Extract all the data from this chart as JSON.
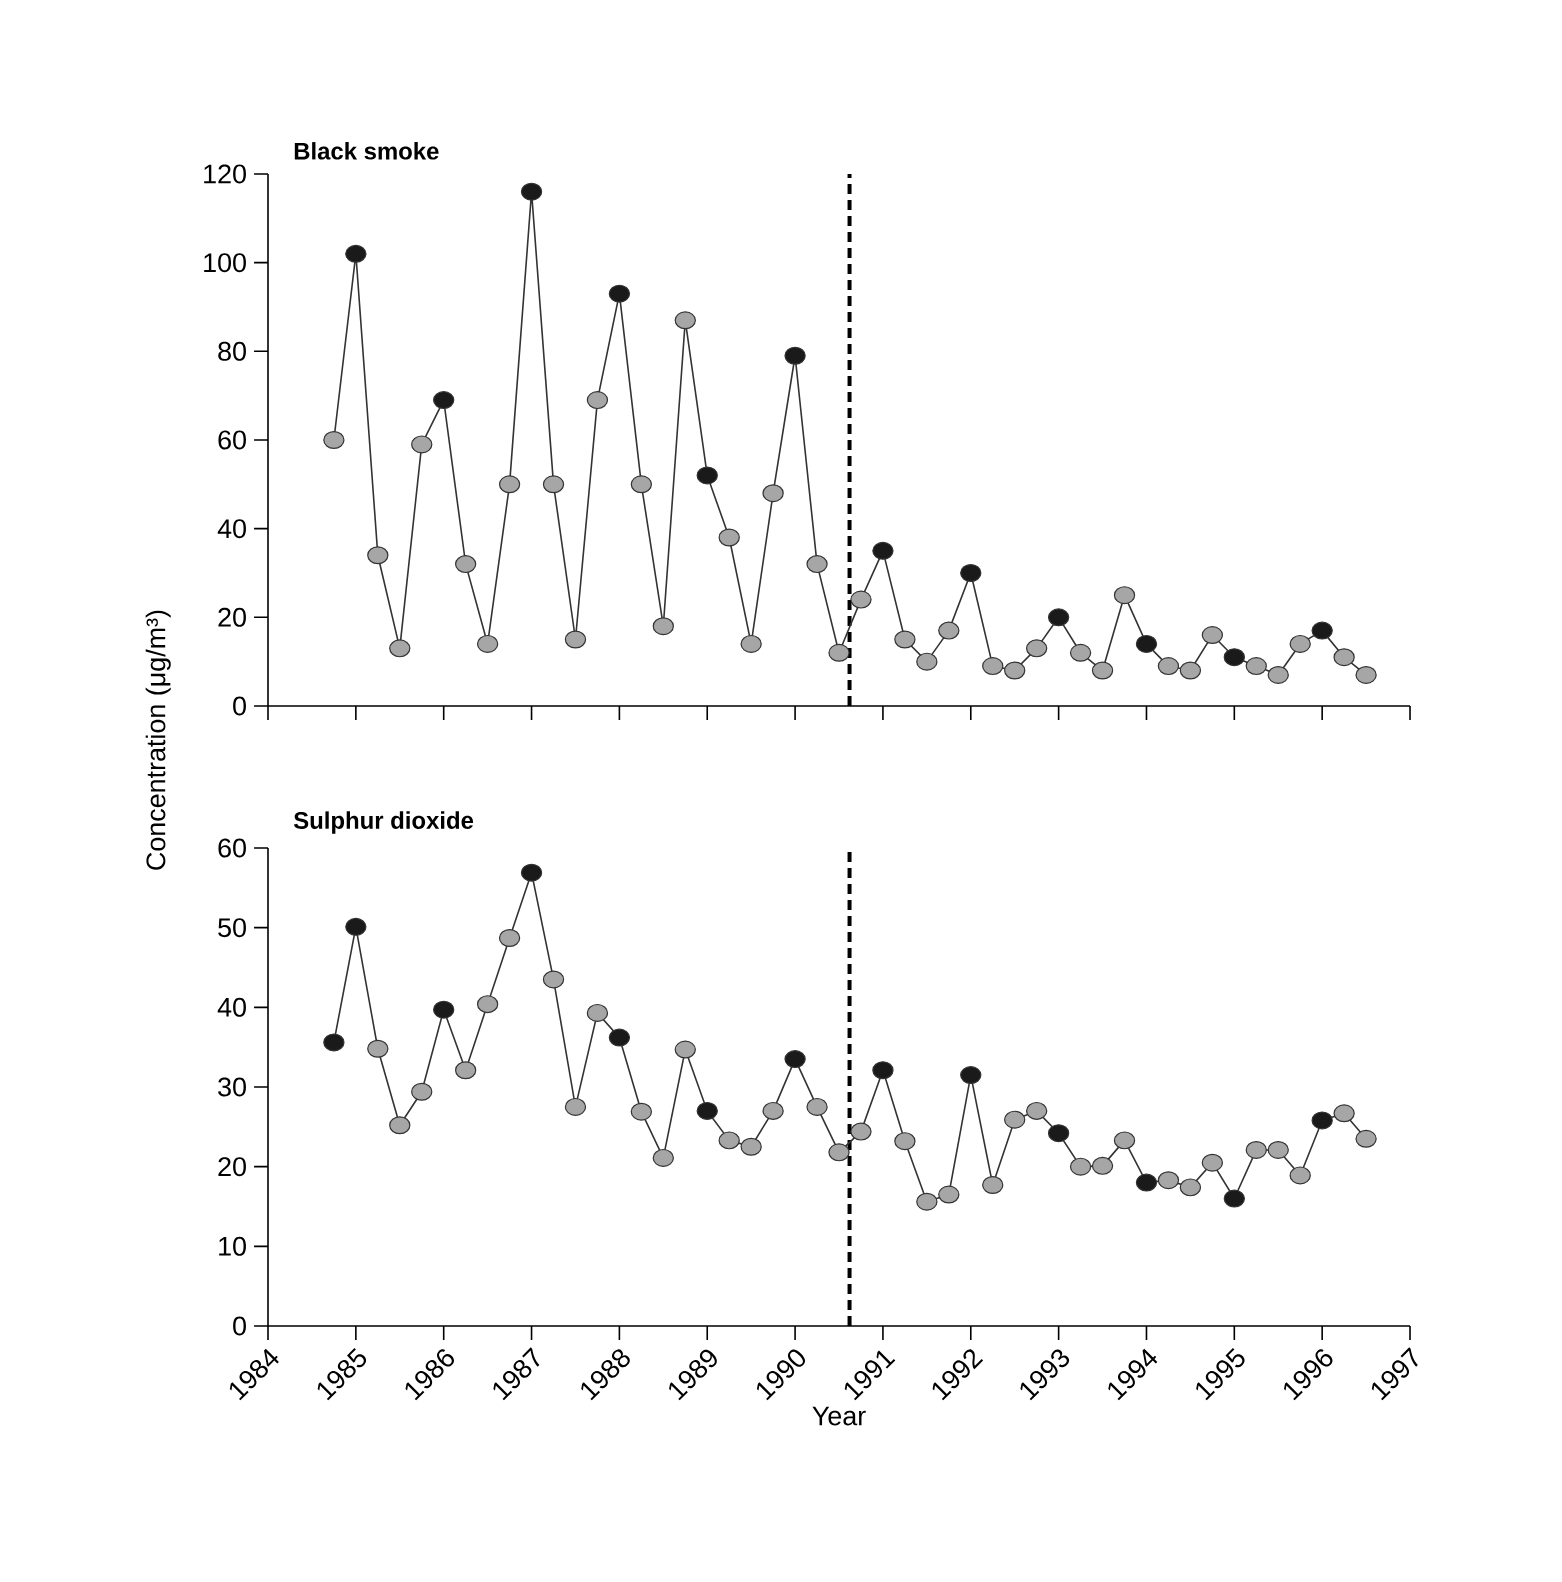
{
  "chart_data": [
    {
      "type": "line",
      "title": "Black smoke",
      "ylabel": "Concentration (μg/m³)",
      "marker": "circle",
      "line_style": "solid",
      "tick_labels": "y",
      "x": [
        1984.75,
        1985,
        1985.25,
        1985.5,
        1985.75,
        1986,
        1986.25,
        1986.5,
        1986.75,
        1987,
        1987.25,
        1987.5,
        1987.75,
        1988,
        1988.25,
        1988.5,
        1988.75,
        1989,
        1989.25,
        1989.5,
        1989.75,
        1990,
        1990.25,
        1990.5,
        1990.75,
        1991,
        1991.25,
        1991.5,
        1991.75,
        1992,
        1992.25,
        1992.5,
        1992.75,
        1993,
        1993.25,
        1993.5,
        1993.75,
        1994,
        1994.25,
        1994.5,
        1994.75,
        1995,
        1995.25,
        1995.5,
        1995.75,
        1996,
        1996.25,
        1996.5
      ],
      "xlim": [
        1984,
        1997
      ],
      "xticks": [
        1984,
        1985,
        1986,
        1987,
        1988,
        1989,
        1990,
        1991,
        1992,
        1993,
        1994,
        1995,
        1996,
        1997
      ],
      "ylim": [
        0,
        120
      ],
      "yticks": [
        0,
        20,
        40,
        60,
        80,
        100,
        120
      ],
      "ref_lines": [
        {
          "axis": "x",
          "value": 1990.62,
          "color": "#000000",
          "line_style": "dashed"
        }
      ],
      "series": [
        {
          "color": "#333333",
          "colors": [
            "#a6a6a6",
            "#1a1a1a",
            "#a6a6a6",
            "#a6a6a6",
            "#a6a6a6",
            "#1a1a1a",
            "#a6a6a6",
            "#a6a6a6",
            "#a6a6a6",
            "#1a1a1a",
            "#a6a6a6",
            "#a6a6a6",
            "#a6a6a6",
            "#1a1a1a",
            "#a6a6a6",
            "#a6a6a6",
            "#a6a6a6",
            "#1a1a1a",
            "#a6a6a6",
            "#a6a6a6",
            "#a6a6a6",
            "#1a1a1a",
            "#a6a6a6",
            "#a6a6a6",
            "#a6a6a6",
            "#1a1a1a",
            "#a6a6a6",
            "#a6a6a6",
            "#a6a6a6",
            "#1a1a1a",
            "#a6a6a6",
            "#a6a6a6",
            "#a6a6a6",
            "#1a1a1a",
            "#a6a6a6",
            "#a6a6a6",
            "#a6a6a6",
            "#1a1a1a",
            "#a6a6a6",
            "#a6a6a6",
            "#a6a6a6",
            "#1a1a1a",
            "#a6a6a6",
            "#a6a6a6",
            "#a6a6a6",
            "#1a1a1a",
            "#a6a6a6",
            "#a6a6a6"
          ],
          "values": [
            60,
            102,
            34,
            13,
            59,
            69,
            32,
            14,
            50,
            116,
            50,
            15,
            69,
            93,
            50,
            18,
            87,
            52,
            38,
            14,
            48,
            79,
            32,
            12,
            24,
            35,
            15,
            10,
            17,
            30,
            9,
            8,
            13,
            20,
            12,
            8,
            25,
            14,
            9,
            8,
            16,
            11,
            9,
            7,
            14,
            17,
            11,
            7
          ]
        }
      ]
    },
    {
      "type": "line",
      "title": "Sulphur dioxide",
      "xlabel": "Year",
      "marker": "circle",
      "line_style": "solid",
      "x": [
        1984.75,
        1985,
        1985.25,
        1985.5,
        1985.75,
        1986,
        1986.25,
        1986.5,
        1986.75,
        1987,
        1987.25,
        1987.5,
        1987.75,
        1988,
        1988.25,
        1988.5,
        1988.75,
        1989,
        1989.25,
        1989.5,
        1989.75,
        1990,
        1990.25,
        1990.5,
        1990.75,
        1991,
        1991.25,
        1991.5,
        1991.75,
        1992,
        1992.25,
        1992.5,
        1992.75,
        1993,
        1993.25,
        1993.5,
        1993.75,
        1994,
        1994.25,
        1994.5,
        1994.75,
        1995,
        1995.25,
        1995.5,
        1995.75,
        1996,
        1996.25,
        1996.5
      ],
      "xlim": [
        1984,
        1997
      ],
      "xticks": [
        1984,
        1985,
        1986,
        1987,
        1988,
        1989,
        1990,
        1991,
        1992,
        1993,
        1994,
        1995,
        1996,
        1997
      ],
      "ylim": [
        0,
        60
      ],
      "yticks": [
        0,
        10,
        20,
        30,
        40,
        50,
        60
      ],
      "ref_lines": [
        {
          "axis": "x",
          "value": 1990.62,
          "color": "#000000",
          "line_style": "dashed"
        }
      ],
      "series": [
        {
          "color": "#333333",
          "colors": [
            "#1a1a1a",
            "#1a1a1a",
            "#a6a6a6",
            "#a6a6a6",
            "#a6a6a6",
            "#1a1a1a",
            "#a6a6a6",
            "#a6a6a6",
            "#a6a6a6",
            "#1a1a1a",
            "#a6a6a6",
            "#a6a6a6",
            "#a6a6a6",
            "#1a1a1a",
            "#a6a6a6",
            "#a6a6a6",
            "#a6a6a6",
            "#1a1a1a",
            "#a6a6a6",
            "#a6a6a6",
            "#a6a6a6",
            "#1a1a1a",
            "#a6a6a6",
            "#a6a6a6",
            "#a6a6a6",
            "#1a1a1a",
            "#a6a6a6",
            "#a6a6a6",
            "#a6a6a6",
            "#1a1a1a",
            "#a6a6a6",
            "#a6a6a6",
            "#a6a6a6",
            "#1a1a1a",
            "#a6a6a6",
            "#a6a6a6",
            "#a6a6a6",
            "#1a1a1a",
            "#a6a6a6",
            "#a6a6a6",
            "#a6a6a6",
            "#1a1a1a",
            "#a6a6a6",
            "#a6a6a6",
            "#a6a6a6",
            "#1a1a1a",
            "#a6a6a6",
            "#a6a6a6"
          ],
          "values": [
            35.6,
            50.1,
            34.8,
            25.2,
            29.4,
            39.7,
            32.1,
            40.4,
            48.7,
            56.9,
            43.5,
            27.5,
            39.3,
            36.2,
            26.9,
            21.1,
            34.7,
            27,
            23.3,
            22.5,
            27,
            33.5,
            27.5,
            21.8,
            24.4,
            32.1,
            23.2,
            15.6,
            16.5,
            31.5,
            17.7,
            25.9,
            27,
            24.2,
            20,
            20.1,
            23.3,
            18,
            18.3,
            17.4,
            20.5,
            16,
            22.1,
            22.1,
            18.9,
            25.8,
            26.7,
            23.5
          ]
        }
      ]
    }
  ]
}
